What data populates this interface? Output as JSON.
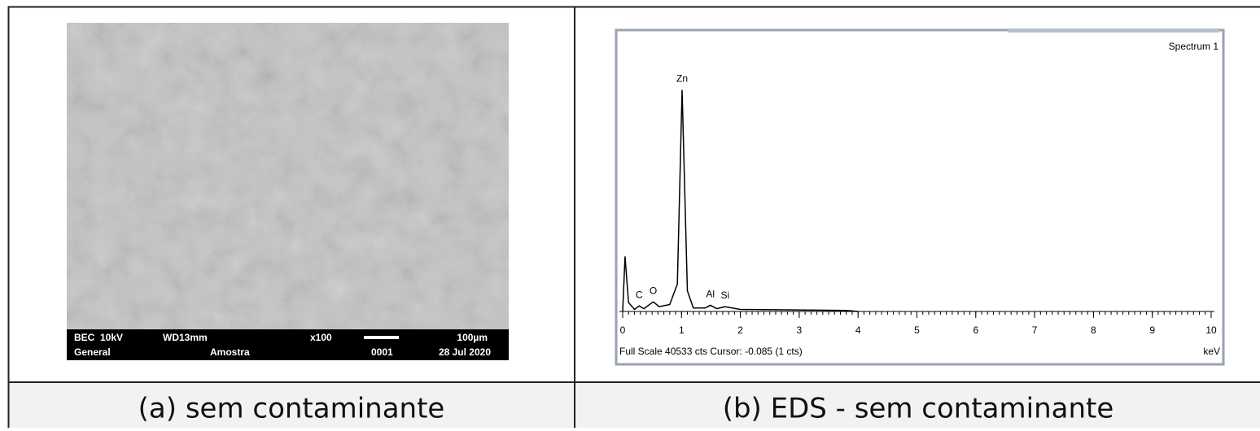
{
  "sem_panel": {
    "caption": "(a) sem contaminante",
    "info_bar": {
      "row1": [
        "BEC  10kV",
        "WD13mm",
        "x100",
        "100µm"
      ],
      "row2": [
        "General",
        "Amostra",
        "0001",
        "28 Jul 2020"
      ]
    }
  },
  "eds_caption": "(b) EDS - sem contaminante",
  "chart_data": {
    "type": "line",
    "title": "Spectrum 1",
    "footer": "Full Scale 40533 cts Cursor: -0.085 (1 cts)",
    "x_label": "keV",
    "x": [
      0,
      0.04,
      0.1,
      0.2,
      0.28,
      0.36,
      0.52,
      0.62,
      0.8,
      0.93,
      1.01,
      1.1,
      1.2,
      1.4,
      1.49,
      1.6,
      1.74,
      2.0,
      3.8,
      4.0
    ],
    "values": [
      0,
      8000,
      1300,
      300,
      800,
      400,
      1400,
      700,
      1000,
      4000,
      32200,
      3000,
      500,
      500,
      900,
      400,
      700,
      300,
      150,
      0
    ],
    "color": "#000000",
    "peaks": [
      {
        "label": "C",
        "x": 0.28
      },
      {
        "label": "O",
        "x": 0.52
      },
      {
        "label": "Zn",
        "x": 1.01
      },
      {
        "label": "Al",
        "x": 1.49
      },
      {
        "label": "Si",
        "x": 1.74
      }
    ],
    "xlim": [
      0,
      10
    ],
    "xticks": [
      0,
      1,
      2,
      3,
      4,
      5,
      6,
      7,
      8,
      9,
      10
    ],
    "ylim": [
      0,
      40533
    ]
  }
}
